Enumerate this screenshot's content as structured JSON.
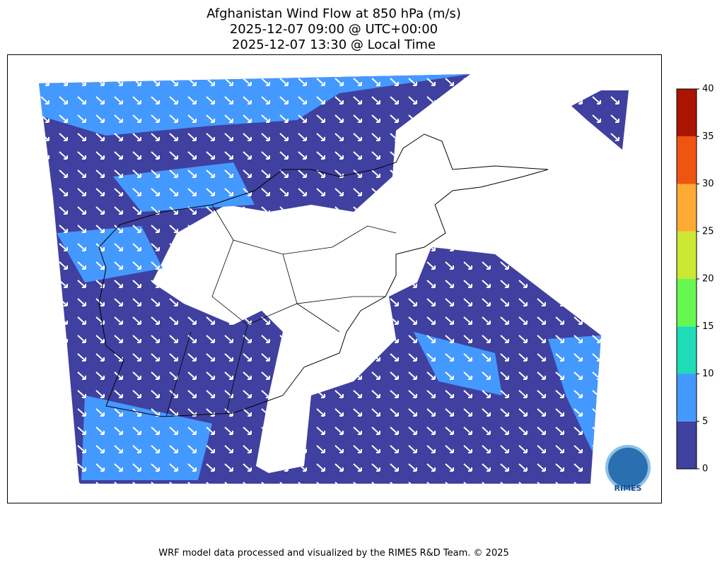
{
  "title_lines": [
    "Afghanistan Wind Flow at 850 hPa (m/s)",
    "2025-12-07 09:00 @ UTC+00:00",
    "2025-12-07 13:30 @ Local Time"
  ],
  "colorbar": {
    "ticks": [
      0,
      5,
      10,
      15,
      20,
      25,
      30,
      35,
      40
    ],
    "colors": [
      "#4040a0",
      "#4499ff",
      "#1edcb8",
      "#66f850",
      "#cce833",
      "#ffaa33",
      "#ee5511",
      "#aa1500"
    ]
  },
  "logo": "RIMES",
  "footer": "WRF model data processed and visualized by the RIMES R&D Team. © 2025"
}
